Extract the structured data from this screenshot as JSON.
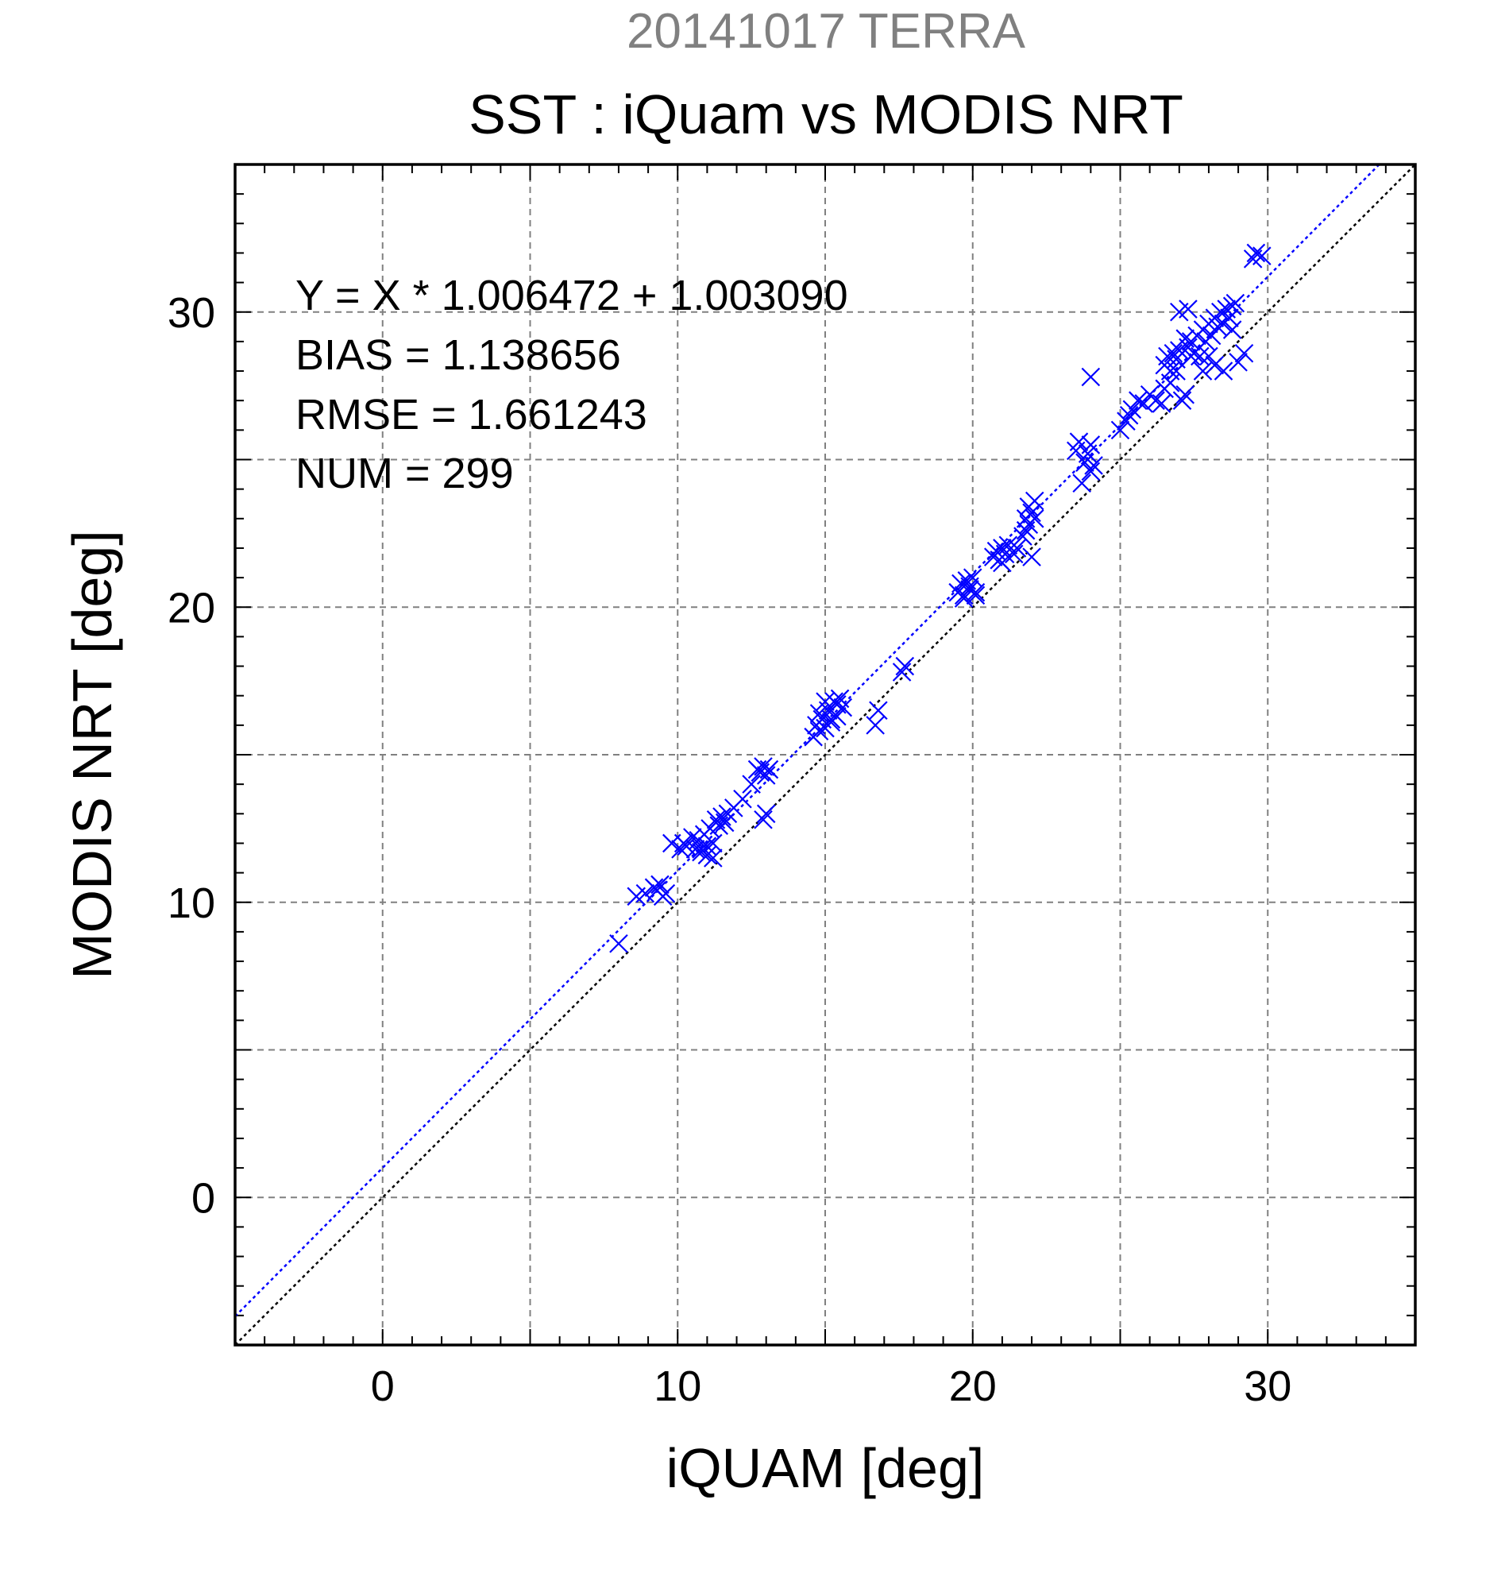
{
  "chart_data": {
    "type": "scatter",
    "supertitle": "20141017 TERRA",
    "title": "SST : iQuam vs MODIS NRT",
    "xlabel": "iQUAM [deg]",
    "ylabel": "MODIS NRT [deg]",
    "xlim": [
      -5,
      35
    ],
    "ylim": [
      -5,
      35
    ],
    "xticks": [
      0,
      10,
      20,
      30
    ],
    "yticks": [
      0,
      10,
      20,
      30
    ],
    "grid": true,
    "stats": [
      "Y = X * 1.006472 + 1.003090",
      "BIAS = 1.138656",
      "RMSE = 1.661243",
      "NUM = 299"
    ],
    "regression": {
      "slope": 1.006472,
      "intercept": 1.00309
    },
    "reference_line": {
      "slope": 1,
      "intercept": 0
    },
    "colors": {
      "points": "#0000ff",
      "fit_line": "#0000ff",
      "reference_line": "#000000",
      "supertitle": "#808080",
      "grid": "#808080"
    },
    "x": [
      8.0,
      8.6,
      8.9,
      9.2,
      9.3,
      9.5,
      9.6,
      9.4,
      9.8,
      10.1,
      10.2,
      10.3,
      10.5,
      10.6,
      10.7,
      10.8,
      10.9,
      11.0,
      11.1,
      11.2,
      11.3,
      11.4,
      11.5,
      11.6,
      11.0,
      10.8,
      11.2,
      11.7,
      11.9,
      12.2,
      12.5,
      12.7,
      12.8,
      12.9,
      13.0,
      13.1,
      13.0,
      12.9,
      14.6,
      14.7,
      14.8,
      14.9,
      15.0,
      15.1,
      15.2,
      15.3,
      15.4,
      15.5,
      15.6,
      15.0,
      14.8,
      15.2,
      15.4,
      16.7,
      16.8,
      17.6,
      17.7,
      19.5,
      19.6,
      19.7,
      19.8,
      19.9,
      20.0,
      20.1,
      19.7,
      19.9,
      20.1,
      20.7,
      20.8,
      20.9,
      21.0,
      21.1,
      21.2,
      21.0,
      21.4,
      21.5,
      21.8,
      21.9,
      22.0,
      22.1,
      21.7,
      21.9,
      22.1,
      21.8,
      22.0,
      23.5,
      23.6,
      23.8,
      23.9,
      24.0,
      24.1,
      23.7,
      24.0,
      25.0,
      25.2,
      25.4,
      25.6,
      25.8,
      25.3,
      26.0,
      26.2,
      26.4,
      26.5,
      26.6,
      26.7,
      26.8,
      26.9,
      27.0,
      27.1,
      27.2,
      26.5,
      26.7,
      26.9,
      27.3,
      27.4,
      27.5,
      27.6,
      27.7,
      27.8,
      27.9,
      28.0,
      28.1,
      28.2,
      28.3,
      28.4,
      28.5,
      28.6,
      28.7,
      28.8,
      28.9,
      29.0,
      27.5,
      27.8,
      28.0,
      28.2,
      28.5,
      27.0,
      27.2,
      27.4,
      28.8,
      29.2,
      29.5,
      29.6,
      29.8,
      24.0,
      27.3
    ],
    "y": [
      8.6,
      10.2,
      10.3,
      10.5,
      10.4,
      10.2,
      10.3,
      10.6,
      12.0,
      11.8,
      12.0,
      11.9,
      12.2,
      11.8,
      12.1,
      11.7,
      12.3,
      11.9,
      12.5,
      12.0,
      12.8,
      12.6,
      12.9,
      12.7,
      11.6,
      11.8,
      11.5,
      13.0,
      13.2,
      13.5,
      14.0,
      14.5,
      14.4,
      14.6,
      14.3,
      14.5,
      13.0,
      12.8,
      15.6,
      16.0,
      15.8,
      16.2,
      15.9,
      16.5,
      16.1,
      16.8,
      16.3,
      16.9,
      16.6,
      16.8,
      16.4,
      16.2,
      16.7,
      16.0,
      16.5,
      17.8,
      18.0,
      20.5,
      20.8,
      20.4,
      20.9,
      20.6,
      21.0,
      20.5,
      20.3,
      20.7,
      20.4,
      21.7,
      21.9,
      21.6,
      22.0,
      21.8,
      22.1,
      21.5,
      21.8,
      22.0,
      23.0,
      23.4,
      23.2,
      23.6,
      22.4,
      22.8,
      23.0,
      22.6,
      21.7,
      25.3,
      25.6,
      24.9,
      25.2,
      25.5,
      24.8,
      24.2,
      27.8,
      26.0,
      26.3,
      26.7,
      27.0,
      26.9,
      26.5,
      27.2,
      27.0,
      26.9,
      28.2,
      28.5,
      28.0,
      28.6,
      28.4,
      28.7,
      27.0,
      27.2,
      27.4,
      27.6,
      28.0,
      28.8,
      29.0,
      28.6,
      29.2,
      28.5,
      29.4,
      29.0,
      29.6,
      29.2,
      29.8,
      29.5,
      30.0,
      29.6,
      30.1,
      29.8,
      30.2,
      30.3,
      28.3,
      28.6,
      28.0,
      28.5,
      28.2,
      28.0,
      30.0,
      29.1,
      28.5,
      29.4,
      28.6,
      31.8,
      32.0,
      31.9,
      24.6,
      30.1
    ]
  }
}
